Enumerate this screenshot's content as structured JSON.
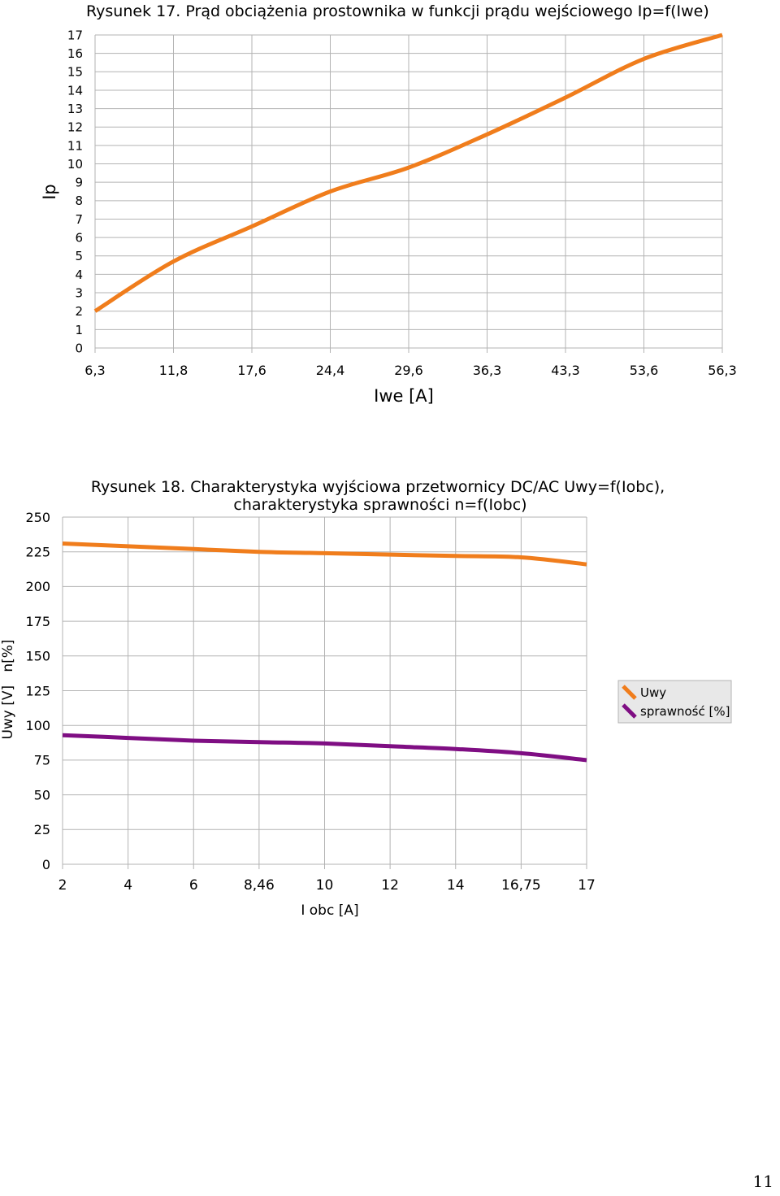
{
  "page_number": "11",
  "chart_data": [
    {
      "type": "line",
      "title": "Rysunek 17. Prąd obciążenia prostownika w funkcji prądu wejściowego Ip=f(Iwe)",
      "xlabel": "Iwe [A]",
      "ylabel": "Ip",
      "categories": [
        "6,3",
        "11,8",
        "17,6",
        "24,4",
        "29,6",
        "36,3",
        "43,3",
        "53,6",
        "56,3"
      ],
      "y_ticks": [
        "0",
        "1",
        "2",
        "3",
        "4",
        "5",
        "6",
        "7",
        "8",
        "9",
        "10",
        "11",
        "12",
        "13",
        "14",
        "15",
        "16",
        "17"
      ],
      "ylim": [
        0,
        17
      ],
      "grid": true,
      "legend": "none",
      "series": [
        {
          "values": [
            2.0,
            4.7,
            6.6,
            8.5,
            9.8,
            11.6,
            13.6,
            15.7,
            17.0
          ]
        }
      ],
      "colors": [
        "#f07d1c"
      ]
    },
    {
      "type": "line",
      "title": "Rysunek 18. Charakterystyka wyjściowa  przetwornicy DC/AC Uwy=f(Iobc), charakterystyka sprawności n=f(Iobc)",
      "title_lines": [
        "Rysunek 18. Charakterystyka wyjściowa  przetwornicy DC/AC Uwy=f(Iobc),",
        "charakterystyka sprawności n=f(Iobc)"
      ],
      "xlabel": "I obc [A]",
      "ylabel": "Uwy [V]   n[%]",
      "categories": [
        "2",
        "4",
        "6",
        "8,46",
        "10",
        "12",
        "14",
        "16,75",
        "17"
      ],
      "y_ticks": [
        "0",
        "25",
        "50",
        "75",
        "100",
        "125",
        "150",
        "175",
        "200",
        "225",
        "250"
      ],
      "ylim": [
        0,
        250
      ],
      "grid": true,
      "legend": "right",
      "series": [
        {
          "name": "Uwy",
          "values": [
            231,
            229,
            227,
            225,
            224,
            223,
            222,
            221,
            216
          ],
          "color": "#f07d1c"
        },
        {
          "name": "sprawność [%]",
          "values": [
            93,
            91,
            89,
            88,
            87,
            85,
            83,
            80,
            75
          ],
          "color": "#7f0e83"
        }
      ]
    }
  ]
}
